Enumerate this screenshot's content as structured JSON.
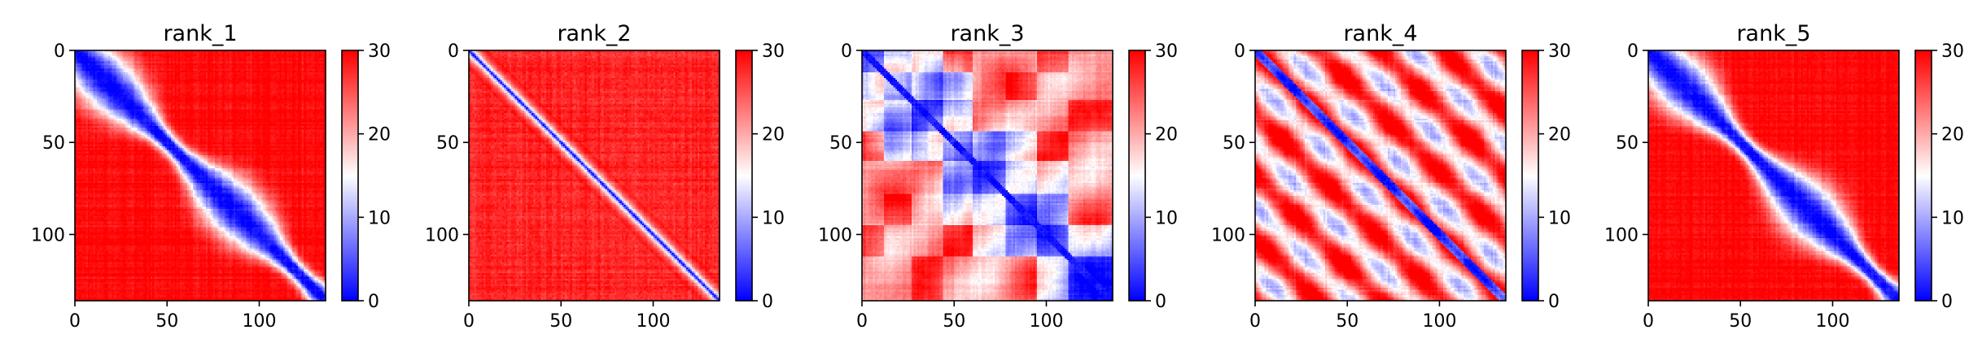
{
  "chart_data": [
    {
      "type": "heatmap",
      "title": "rank_1",
      "pattern": "broad-diagonal-blocky",
      "xlim": [
        0,
        136
      ],
      "ylim": [
        136,
        0
      ],
      "x_ticks": [
        "0",
        "50",
        "100"
      ],
      "y_ticks": [
        "0",
        "50",
        "100"
      ],
      "colorbar": {
        "min": 0,
        "max": 30,
        "ticks": [
          "0",
          "10",
          "20",
          "30"
        ],
        "colormap": "bwr"
      }
    },
    {
      "type": "heatmap",
      "title": "rank_2",
      "pattern": "narrow-diagonal",
      "xlim": [
        0,
        136
      ],
      "ylim": [
        136,
        0
      ],
      "x_ticks": [
        "0",
        "50",
        "100"
      ],
      "y_ticks": [
        "0",
        "50",
        "100"
      ],
      "colorbar": {
        "min": 0,
        "max": 30,
        "ticks": [
          "0",
          "10",
          "20",
          "30"
        ],
        "colormap": "bwr"
      }
    },
    {
      "type": "heatmap",
      "title": "rank_3",
      "pattern": "domain-blocks",
      "xlim": [
        0,
        136
      ],
      "ylim": [
        136,
        0
      ],
      "x_ticks": [
        "0",
        "50",
        "100"
      ],
      "y_ticks": [
        "0",
        "50",
        "100"
      ],
      "colorbar": {
        "min": 0,
        "max": 30,
        "ticks": [
          "0",
          "10",
          "20",
          "30"
        ],
        "colormap": "bwr"
      }
    },
    {
      "type": "heatmap",
      "title": "rank_4",
      "pattern": "parallel-bands",
      "xlim": [
        0,
        136
      ],
      "ylim": [
        136,
        0
      ],
      "x_ticks": [
        "0",
        "50",
        "100"
      ],
      "y_ticks": [
        "0",
        "50",
        "100"
      ],
      "colorbar": {
        "min": 0,
        "max": 30,
        "ticks": [
          "0",
          "10",
          "20",
          "30"
        ],
        "colormap": "bwr"
      }
    },
    {
      "type": "heatmap",
      "title": "rank_5",
      "pattern": "broad-diagonal-blocky",
      "xlim": [
        0,
        136
      ],
      "ylim": [
        136,
        0
      ],
      "x_ticks": [
        "0",
        "50",
        "100"
      ],
      "y_ticks": [
        "0",
        "50",
        "100"
      ],
      "colorbar": {
        "min": 0,
        "max": 30,
        "ticks": [
          "0",
          "10",
          "20",
          "30"
        ],
        "colormap": "bwr"
      }
    }
  ]
}
